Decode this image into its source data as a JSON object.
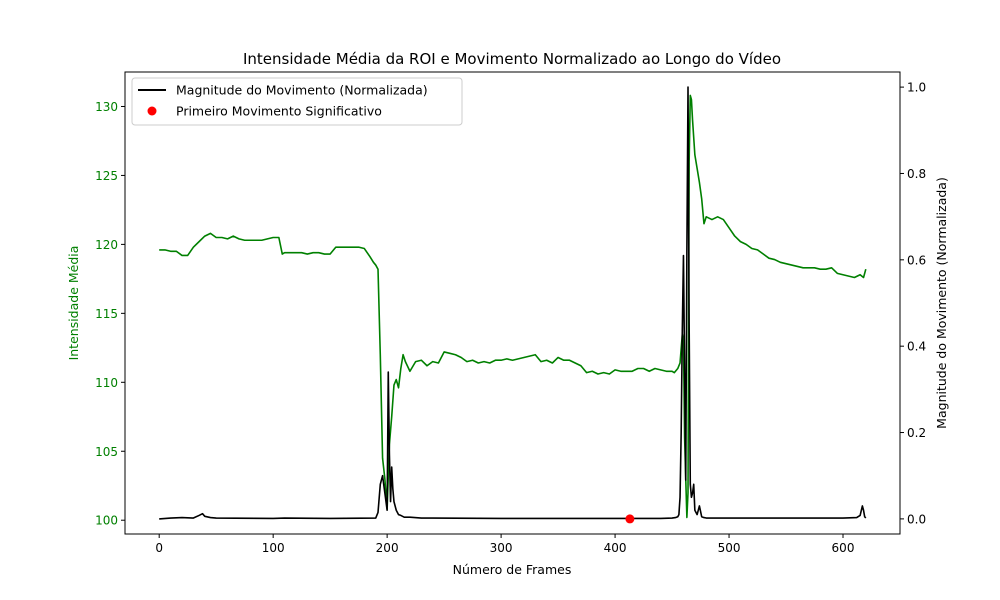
{
  "chart_data": {
    "type": "line",
    "title": "Intensidade Média da ROI e Movimento Normalizado ao Longo do Vídeo",
    "xlabel": "Número de Frames",
    "ylabel_left": "Intensidade Média",
    "ylabel_right": "Magnitude do Movimento (Normalizada)",
    "xlim": [
      -30,
      650
    ],
    "ylim_left": [
      99,
      132.5
    ],
    "ylim_right": [
      -0.035,
      1.035
    ],
    "x_ticks": [
      0,
      100,
      200,
      300,
      400,
      500,
      600
    ],
    "y_left_ticks": [
      100,
      105,
      110,
      115,
      120,
      125,
      130
    ],
    "y_right_ticks": [
      0.0,
      0.2,
      0.4,
      0.6,
      0.8,
      1.0
    ],
    "x_tick_labels": [
      "0",
      "100",
      "200",
      "300",
      "400",
      "500",
      "600"
    ],
    "y_left_tick_labels": [
      "100",
      "105",
      "110",
      "115",
      "120",
      "125",
      "130"
    ],
    "y_right_tick_labels": [
      "0.0",
      "0.2",
      "0.4",
      "0.6",
      "0.8",
      "1.0"
    ],
    "grid": false,
    "legend_position": "top-left",
    "colors": {
      "intensity": "#008000",
      "motion": "#000000",
      "marker": "#ff0000",
      "left_axis_text": "#008000",
      "right_axis_text": "#000000"
    },
    "legend": [
      {
        "label": "Magnitude do Movimento (Normalizada)",
        "kind": "line",
        "color": "#000000"
      },
      {
        "label": "Primeiro Movimento Significativo",
        "kind": "marker",
        "color": "#ff0000"
      }
    ],
    "series": [
      {
        "axis": "left",
        "color": "#008000",
        "x": [
          0,
          5,
          10,
          15,
          20,
          25,
          30,
          35,
          40,
          45,
          50,
          55,
          60,
          65,
          70,
          75,
          80,
          85,
          90,
          95,
          100,
          105,
          108,
          110,
          115,
          120,
          125,
          130,
          135,
          140,
          145,
          150,
          155,
          160,
          165,
          170,
          175,
          180,
          185,
          188,
          190,
          192,
          194,
          196,
          198,
          200,
          202,
          204,
          206,
          208,
          210,
          212,
          214,
          216,
          220,
          225,
          230,
          235,
          240,
          245,
          250,
          255,
          260,
          265,
          270,
          275,
          280,
          285,
          290,
          295,
          300,
          305,
          310,
          315,
          320,
          325,
          330,
          335,
          340,
          345,
          350,
          355,
          360,
          365,
          370,
          375,
          380,
          385,
          390,
          395,
          400,
          405,
          410,
          415,
          420,
          425,
          430,
          435,
          440,
          445,
          450,
          452,
          455,
          457,
          459,
          460,
          461,
          462,
          463,
          464,
          465,
          466,
          467,
          468,
          470,
          472,
          474,
          476,
          478,
          480,
          485,
          490,
          495,
          500,
          505,
          510,
          515,
          520,
          525,
          530,
          535,
          540,
          545,
          550,
          555,
          560,
          565,
          570,
          575,
          580,
          585,
          590,
          595,
          600,
          605,
          610,
          615,
          618,
          620
        ],
        "y": [
          119.6,
          119.6,
          119.5,
          119.5,
          119.2,
          119.2,
          119.8,
          120.2,
          120.6,
          120.8,
          120.5,
          120.5,
          120.4,
          120.6,
          120.4,
          120.3,
          120.3,
          120.3,
          120.3,
          120.4,
          120.5,
          120.5,
          119.3,
          119.4,
          119.4,
          119.4,
          119.4,
          119.3,
          119.4,
          119.4,
          119.3,
          119.3,
          119.8,
          119.8,
          119.8,
          119.8,
          119.8,
          119.7,
          119.1,
          118.7,
          118.5,
          118.2,
          112.0,
          104.5,
          103.0,
          100.8,
          105.5,
          107.5,
          109.8,
          110.2,
          109.6,
          111.0,
          112.0,
          111.5,
          110.8,
          111.5,
          111.6,
          111.2,
          111.5,
          111.4,
          112.2,
          112.1,
          112.0,
          111.8,
          111.5,
          111.6,
          111.4,
          111.5,
          111.4,
          111.6,
          111.6,
          111.7,
          111.6,
          111.7,
          111.8,
          111.9,
          112.0,
          111.5,
          111.6,
          111.4,
          111.8,
          111.6,
          111.6,
          111.4,
          111.2,
          110.7,
          110.8,
          110.6,
          110.7,
          110.6,
          110.9,
          110.8,
          110.8,
          110.8,
          111.0,
          111.0,
          110.8,
          111.0,
          110.9,
          110.8,
          110.8,
          110.7,
          111.0,
          111.4,
          113.5,
          113.0,
          106.0,
          103.0,
          100.2,
          102.0,
          126.0,
          130.8,
          130.5,
          129.0,
          126.5,
          125.5,
          124.5,
          123.3,
          121.5,
          122.0,
          121.8,
          122.0,
          121.8,
          121.2,
          120.6,
          120.2,
          120.0,
          119.7,
          119.6,
          119.3,
          119.0,
          118.9,
          118.7,
          118.6,
          118.5,
          118.4,
          118.3,
          118.3,
          118.3,
          118.2,
          118.2,
          118.3,
          117.9,
          117.8,
          117.7,
          117.6,
          117.8,
          117.6,
          118.2
        ]
      },
      {
        "axis": "right",
        "color": "#000000",
        "x": [
          0,
          10,
          20,
          30,
          35,
          38,
          40,
          45,
          50,
          100,
          110,
          150,
          190,
          192,
          194,
          196,
          198,
          200,
          201,
          202,
          203,
          204,
          205,
          206,
          208,
          210,
          212,
          215,
          220,
          230,
          240,
          300,
          400,
          440,
          450,
          453,
          455,
          456,
          457,
          458,
          459,
          460,
          461,
          462,
          463,
          464,
          465,
          466,
          467,
          468,
          469,
          470,
          472,
          474,
          476,
          478,
          480,
          500,
          550,
          600,
          612,
          615,
          617,
          618,
          619,
          620
        ],
        "y": [
          0.0,
          0.002,
          0.003,
          0.002,
          0.008,
          0.012,
          0.006,
          0.003,
          0.002,
          0.001,
          0.002,
          0.001,
          0.002,
          0.015,
          0.08,
          0.1,
          0.06,
          0.02,
          0.34,
          0.15,
          0.04,
          0.12,
          0.07,
          0.04,
          0.02,
          0.01,
          0.008,
          0.004,
          0.004,
          0.002,
          0.002,
          0.001,
          0.001,
          0.001,
          0.002,
          0.003,
          0.005,
          0.01,
          0.05,
          0.2,
          0.44,
          0.61,
          0.35,
          0.09,
          0.62,
          1.0,
          0.45,
          0.08,
          0.05,
          0.06,
          0.08,
          0.02,
          0.01,
          0.03,
          0.005,
          0.003,
          0.002,
          0.002,
          0.002,
          0.002,
          0.003,
          0.008,
          0.03,
          0.02,
          0.005,
          0.002
        ]
      }
    ],
    "markers": [
      {
        "axis": "right",
        "x": 413,
        "y": 0.0,
        "color": "#ff0000"
      }
    ]
  }
}
